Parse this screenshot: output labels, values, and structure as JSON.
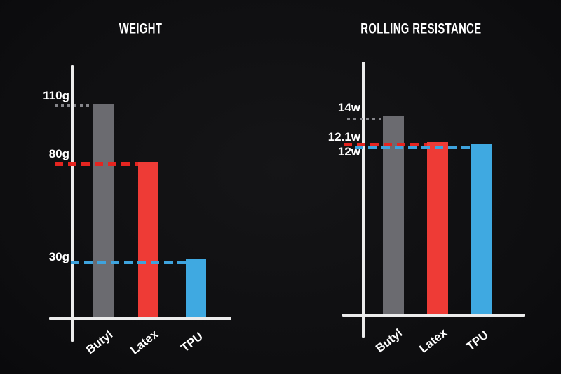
{
  "page": {
    "background": "#0e0e10"
  },
  "chart_data": [
    {
      "type": "bar",
      "title": "WEIGHT",
      "categories": [
        "Butyl",
        "Latex",
        "TPU"
      ],
      "values": [
        110,
        80,
        30
      ],
      "unit": "g",
      "value_labels": [
        "110g",
        "80g",
        "30g"
      ],
      "xlabel": "",
      "ylabel": "",
      "ylim": [
        0,
        130
      ],
      "grid": false,
      "legend": "none",
      "bar_colors": [
        "#6b6b70",
        "#ee3b36",
        "#3fa9e1"
      ],
      "ref_line_colors": [
        "#85858a",
        "#e52520",
        "#3ea3dd"
      ],
      "ref_line_styles": [
        "dotted",
        "dashed",
        "dashed"
      ],
      "axis_color": "#ececec",
      "text_color": "#ffffff"
    },
    {
      "type": "bar",
      "title": "ROLLING RESISTANCE",
      "categories": [
        "Butyl",
        "Latex",
        "TPU"
      ],
      "values": [
        14,
        12.1,
        12
      ],
      "unit": "w",
      "value_labels": [
        "14w",
        "12.1w",
        "12w"
      ],
      "xlabel": "",
      "ylabel": "",
      "ylim": [
        0,
        17.8
      ],
      "grid": false,
      "legend": "none",
      "bar_colors": [
        "#6b6b70",
        "#ee3b36",
        "#3fa9e1"
      ],
      "ref_line_colors": [
        "#85858a",
        "#e52520",
        "#3ea3dd"
      ],
      "ref_line_styles": [
        "dotted",
        "dashed",
        "dashed"
      ],
      "axis_color": "#ececec",
      "text_color": "#ffffff"
    }
  ]
}
